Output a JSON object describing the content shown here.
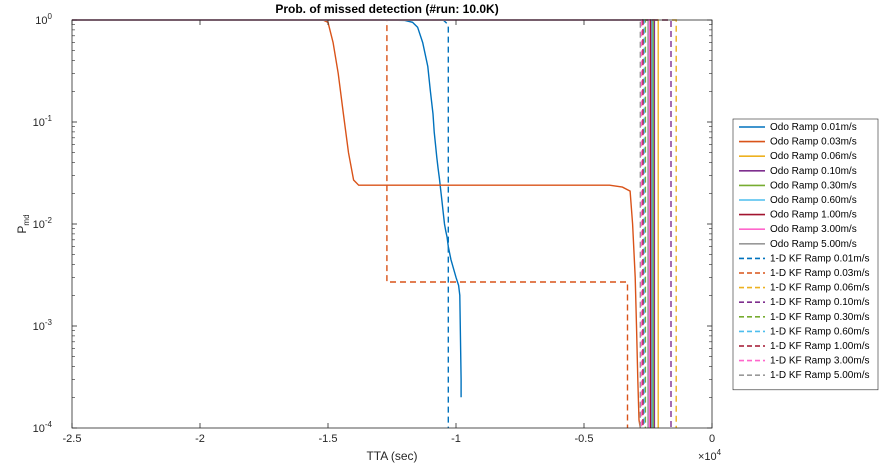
{
  "chart_data": {
    "type": "line",
    "title": "Prob. of missed detection (#run: 10.0K)",
    "xlabel": "TTA (sec)",
    "ylabel_main": "P",
    "ylabel_sub": "md",
    "x_multiplier": "×10",
    "x_multiplier_exp": "4",
    "xlim": [
      -2.5,
      0
    ],
    "ylim": [
      0.0001,
      1
    ],
    "yscale": "log",
    "grid": false,
    "legend_position": "right-outside",
    "x_ticks": [
      -2.5,
      -2,
      -1.5,
      -1,
      -0.5,
      0
    ],
    "x_tick_labels": [
      "-2.5",
      "-2",
      "-1.5",
      "-1",
      "-0.5",
      "0"
    ],
    "y_ticks": [
      0.0001,
      0.001,
      0.01,
      0.1,
      1
    ],
    "y_tick_base": [
      "10",
      "10",
      "10",
      "10",
      "10"
    ],
    "y_tick_exp": [
      "-4",
      "-3",
      "-2",
      "-1",
      "0"
    ],
    "series": [
      {
        "name": "Odo Ramp 0.01m/s",
        "color": "#0072BD",
        "dash": false,
        "x": [
          -2.5,
          -1.28,
          -1.2,
          -1.17,
          -1.15,
          -1.13,
          -1.11,
          -1.1,
          -1.09,
          -1.085,
          -1.08,
          -1.075,
          -1.07,
          -1.065,
          -1.06,
          -1.055,
          -1.05,
          -1.045,
          -1.04,
          -1.035,
          -1.03,
          -1.02,
          -1.0,
          -0.99,
          -0.985,
          -0.98,
          -0.98
        ],
        "y": [
          1,
          1,
          0.99,
          0.95,
          0.85,
          0.6,
          0.35,
          0.2,
          0.12,
          0.08,
          0.06,
          0.045,
          0.035,
          0.028,
          0.022,
          0.017,
          0.013,
          0.01,
          0.0085,
          0.0075,
          0.006,
          0.0045,
          0.003,
          0.0025,
          0.002,
          0.0003,
          0.0002
        ]
      },
      {
        "name": "Odo Ramp 0.03m/s",
        "color": "#D95319",
        "dash": false,
        "x": [
          -2.5,
          -1.52,
          -1.5,
          -1.48,
          -1.46,
          -1.44,
          -1.42,
          -1.4,
          -1.38,
          -0.4,
          -0.35,
          -0.32,
          -0.31,
          -0.3,
          -0.295,
          -0.29,
          -0.285,
          -0.28
        ],
        "y": [
          1,
          1,
          0.95,
          0.6,
          0.3,
          0.12,
          0.05,
          0.027,
          0.024,
          0.024,
          0.023,
          0.021,
          0.01,
          0.003,
          0.001,
          0.0003,
          0.00012,
          0.0001
        ]
      },
      {
        "name": "Odo Ramp 0.06m/s",
        "color": "#EDB120",
        "dash": false,
        "x": [
          -2.5,
          -0.21,
          -0.21
        ],
        "y": [
          1,
          1,
          0.0001
        ]
      },
      {
        "name": "Odo Ramp 0.10m/s",
        "color": "#7E2F8E",
        "dash": false,
        "x": [
          -2.5,
          -0.225,
          -0.225
        ],
        "y": [
          1,
          1,
          0.0001
        ]
      },
      {
        "name": "Odo Ramp 0.30m/s",
        "color": "#77AC30",
        "dash": false,
        "x": [
          -2.5,
          -0.23,
          -0.23
        ],
        "y": [
          1,
          1,
          0.0001
        ]
      },
      {
        "name": "Odo Ramp 0.60m/s",
        "color": "#4DBEEE",
        "dash": false,
        "x": [
          -2.5,
          -0.235,
          -0.235
        ],
        "y": [
          1,
          1,
          0.0001
        ]
      },
      {
        "name": "Odo Ramp 1.00m/s",
        "color": "#A2142F",
        "dash": false,
        "x": [
          -2.5,
          -0.24,
          -0.24
        ],
        "y": [
          1,
          1,
          0.0001
        ]
      },
      {
        "name": "Odo Ramp 3.00m/s",
        "color": "#FF66CC",
        "dash": false,
        "x": [
          -2.5,
          -0.245,
          -0.245
        ],
        "y": [
          1,
          1,
          0.0001
        ]
      },
      {
        "name": "Odo Ramp 5.00m/s",
        "color": "#999999",
        "dash": false,
        "x": [
          -2.5,
          -0.25,
          -0.25
        ],
        "y": [
          1,
          1,
          0.0001
        ]
      },
      {
        "name": "1-D KF Ramp 0.01m/s",
        "color": "#0072BD",
        "dash": true,
        "x": [
          -2.5,
          -1.05,
          -1.03,
          -1.03
        ],
        "y": [
          1,
          1,
          0.9,
          0.0001
        ]
      },
      {
        "name": "1-D KF Ramp 0.03m/s",
        "color": "#D95319",
        "dash": true,
        "x": [
          -2.5,
          -1.27,
          -1.27,
          -0.33,
          -0.33
        ],
        "y": [
          1,
          1,
          0.0027,
          0.0027,
          0.0001
        ]
      },
      {
        "name": "1-D KF Ramp 0.06m/s",
        "color": "#EDB120",
        "dash": true,
        "x": [
          -2.5,
          -0.14,
          -0.14
        ],
        "y": [
          1,
          1,
          0.0001
        ]
      },
      {
        "name": "1-D KF Ramp 0.10m/s",
        "color": "#7E2F8E",
        "dash": true,
        "x": [
          -2.5,
          -0.16,
          -0.16
        ],
        "y": [
          1,
          1,
          0.0001
        ]
      },
      {
        "name": "1-D KF Ramp 0.30m/s",
        "color": "#77AC30",
        "dash": true,
        "x": [
          -2.5,
          -0.26,
          -0.26
        ],
        "y": [
          1,
          1,
          0.0001
        ]
      },
      {
        "name": "1-D KF Ramp 0.60m/s",
        "color": "#4DBEEE",
        "dash": true,
        "x": [
          -2.5,
          -0.265,
          -0.265
        ],
        "y": [
          1,
          1,
          0.0001
        ]
      },
      {
        "name": "1-D KF Ramp 1.00m/s",
        "color": "#A2142F",
        "dash": true,
        "x": [
          -2.5,
          -0.27,
          -0.27
        ],
        "y": [
          1,
          1,
          0.0001
        ]
      },
      {
        "name": "1-D KF Ramp 3.00m/s",
        "color": "#FF66CC",
        "dash": true,
        "x": [
          -2.5,
          -0.275,
          -0.275
        ],
        "y": [
          1,
          1,
          0.0001
        ]
      },
      {
        "name": "1-D KF Ramp 5.00m/s",
        "color": "#999999",
        "dash": true,
        "x": [
          -2.5,
          -0.28,
          -0.28
        ],
        "y": [
          1,
          1,
          0.0001
        ]
      }
    ]
  }
}
